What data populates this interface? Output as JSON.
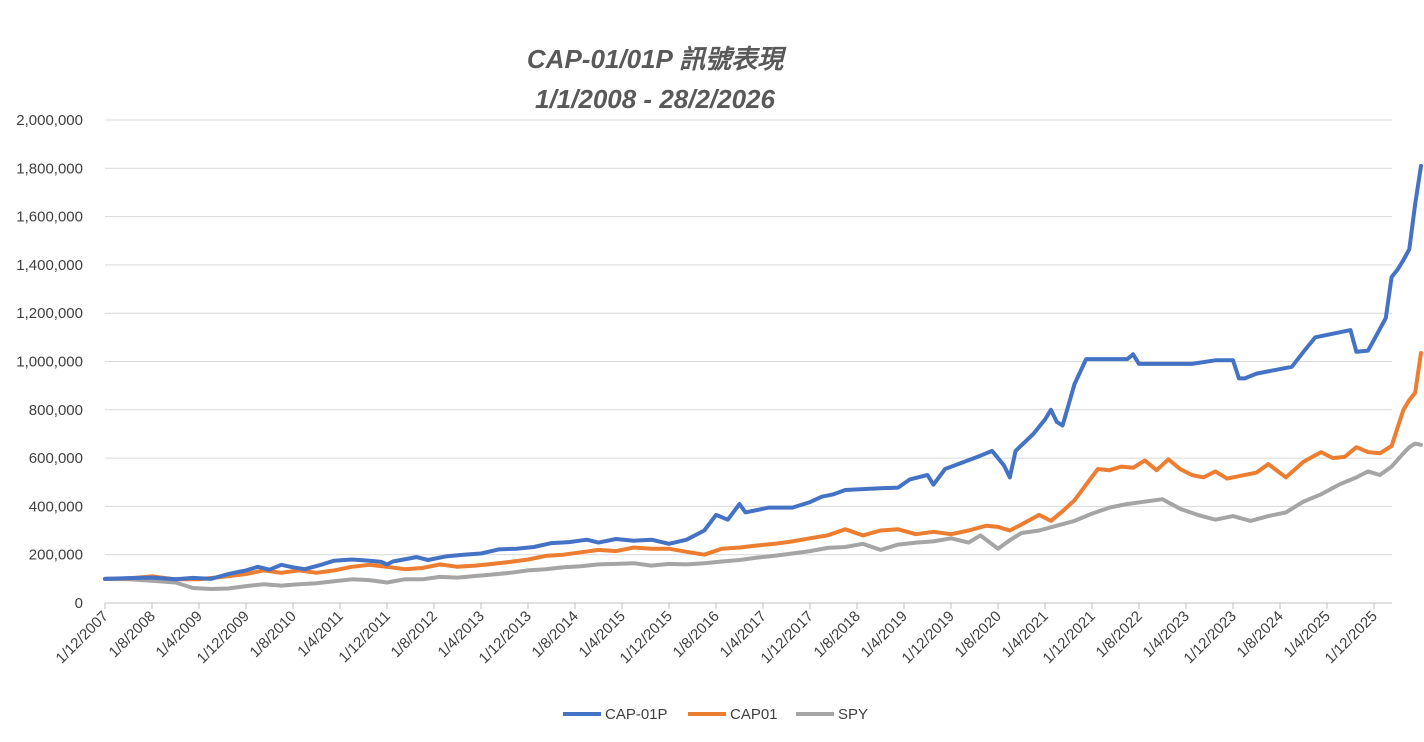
{
  "chart_data": {
    "type": "line",
    "title": "CAP-01/01P 訊號表現",
    "subtitle": "1/1/2008 - 28/2/2026",
    "xlabel": "",
    "ylabel": "",
    "ylim": [
      0,
      2000000
    ],
    "yticks": [
      0,
      200000,
      400000,
      600000,
      800000,
      1000000,
      1200000,
      1400000,
      1600000,
      1800000,
      2000000
    ],
    "ytick_labels": [
      "0",
      "200,000",
      "400,000",
      "600,000",
      "800,000",
      "1,000,000",
      "1,200,000",
      "1,400,000",
      "1,600,000",
      "1,800,000",
      "2,000,000"
    ],
    "x_range": [
      "2007-12-01",
      "2026-03-01"
    ],
    "xtick_labels": [
      "1/12/2007",
      "1/8/2008",
      "1/4/2009",
      "1/12/2009",
      "1/8/2010",
      "1/4/2011",
      "1/12/2011",
      "1/8/2012",
      "1/4/2013",
      "1/12/2013",
      "1/8/2014",
      "1/4/2015",
      "1/12/2015",
      "1/8/2016",
      "1/4/2017",
      "1/12/2017",
      "1/8/2018",
      "1/4/2019",
      "1/12/2019",
      "1/8/2020",
      "1/4/2021",
      "1/12/2021",
      "1/8/2022",
      "1/4/2023",
      "1/12/2023",
      "1/8/2024",
      "1/4/2025",
      "1/12/2025"
    ],
    "grid": true,
    "legend_position": "bottom",
    "series": [
      {
        "name": "CAP-01P",
        "color": "#4472c4",
        "points": [
          [
            "2007-12-01",
            100000
          ],
          [
            "2008-04-01",
            103000
          ],
          [
            "2008-08-01",
            105000
          ],
          [
            "2008-12-01",
            98000
          ],
          [
            "2009-03-01",
            104000
          ],
          [
            "2009-06-01",
            100000
          ],
          [
            "2009-09-01",
            120000
          ],
          [
            "2009-12-01",
            135000
          ],
          [
            "2010-02-01",
            150000
          ],
          [
            "2010-04-01",
            138000
          ],
          [
            "2010-06-01",
            158000
          ],
          [
            "2010-08-01",
            148000
          ],
          [
            "2010-10-01",
            140000
          ],
          [
            "2011-01-01",
            160000
          ],
          [
            "2011-03-01",
            175000
          ],
          [
            "2011-06-01",
            180000
          ],
          [
            "2011-09-01",
            175000
          ],
          [
            "2011-11-01",
            170000
          ],
          [
            "2011-12-01",
            160000
          ],
          [
            "2012-01-01",
            172000
          ],
          [
            "2012-05-01",
            190000
          ],
          [
            "2012-07-01",
            178000
          ],
          [
            "2012-10-01",
            193000
          ],
          [
            "2013-01-01",
            200000
          ],
          [
            "2013-04-01",
            205000
          ],
          [
            "2013-07-01",
            222000
          ],
          [
            "2013-10-01",
            225000
          ],
          [
            "2014-01-01",
            232000
          ],
          [
            "2014-04-01",
            248000
          ],
          [
            "2014-07-01",
            252000
          ],
          [
            "2014-10-01",
            262000
          ],
          [
            "2014-12-01",
            250000
          ],
          [
            "2015-03-01",
            265000
          ],
          [
            "2015-06-01",
            258000
          ],
          [
            "2015-09-01",
            262000
          ],
          [
            "2015-12-01",
            245000
          ],
          [
            "2016-03-01",
            262000
          ],
          [
            "2016-06-01",
            300000
          ],
          [
            "2016-08-01",
            365000
          ],
          [
            "2016-10-01",
            345000
          ],
          [
            "2016-12-01",
            410000
          ],
          [
            "2017-01-01",
            375000
          ],
          [
            "2017-03-01",
            385000
          ],
          [
            "2017-05-01",
            395000
          ],
          [
            "2017-09-01",
            395000
          ],
          [
            "2017-12-01",
            418000
          ],
          [
            "2018-02-01",
            440000
          ],
          [
            "2018-04-01",
            450000
          ],
          [
            "2018-06-01",
            468000
          ],
          [
            "2018-12-01",
            475000
          ],
          [
            "2019-03-01",
            478000
          ],
          [
            "2019-05-01",
            512000
          ],
          [
            "2019-08-01",
            530000
          ],
          [
            "2019-09-01",
            490000
          ],
          [
            "2019-11-01",
            555000
          ],
          [
            "2020-02-01",
            582000
          ],
          [
            "2020-05-01",
            610000
          ],
          [
            "2020-07-01",
            630000
          ],
          [
            "2020-09-01",
            570000
          ],
          [
            "2020-10-01",
            520000
          ],
          [
            "2020-11-01",
            630000
          ],
          [
            "2021-02-01",
            700000
          ],
          [
            "2021-04-01",
            760000
          ],
          [
            "2021-05-01",
            800000
          ],
          [
            "2021-06-01",
            750000
          ],
          [
            "2021-07-01",
            735000
          ],
          [
            "2021-09-01",
            905000
          ],
          [
            "2021-11-01",
            1010000
          ],
          [
            "2022-01-01",
            1010000
          ],
          [
            "2022-06-01",
            1010000
          ],
          [
            "2022-07-01",
            1030000
          ],
          [
            "2022-08-01",
            990000
          ],
          [
            "2022-12-01",
            990000
          ],
          [
            "2023-05-01",
            990000
          ],
          [
            "2023-09-01",
            1005000
          ],
          [
            "2023-12-01",
            1005000
          ],
          [
            "2024-01-01",
            930000
          ],
          [
            "2024-02-01",
            930000
          ],
          [
            "2024-04-01",
            950000
          ],
          [
            "2024-10-01",
            978000
          ],
          [
            "2024-12-01",
            1040000
          ],
          [
            "2025-02-01",
            1100000
          ],
          [
            "2025-08-01",
            1130000
          ],
          [
            "2025-09-01",
            1040000
          ],
          [
            "2025-11-01",
            1045000
          ],
          [
            "2025-12-01",
            1090000
          ],
          [
            "2026-01-01",
            1135000
          ],
          [
            "2026-02-01",
            1180000
          ],
          [
            "2026-03-01",
            1350000
          ],
          [
            "2026-04-01",
            1380000
          ],
          [
            "2026-05-01",
            1420000
          ],
          [
            "2026-06-01",
            1465000
          ],
          [
            "2026-07-01",
            1650000
          ],
          [
            "2026-08-01",
            1810000
          ]
        ]
      },
      {
        "name": "CAP01",
        "color": "#ed7d31",
        "points": [
          [
            "2007-12-01",
            100000
          ],
          [
            "2008-04-01",
            102000
          ],
          [
            "2008-08-01",
            110000
          ],
          [
            "2008-12-01",
            98000
          ],
          [
            "2009-04-01",
            98000
          ],
          [
            "2009-08-01",
            108000
          ],
          [
            "2009-12-01",
            120000
          ],
          [
            "2010-03-01",
            135000
          ],
          [
            "2010-06-01",
            125000
          ],
          [
            "2010-09-01",
            135000
          ],
          [
            "2010-12-01",
            125000
          ],
          [
            "2011-03-01",
            135000
          ],
          [
            "2011-06-01",
            150000
          ],
          [
            "2011-09-01",
            158000
          ],
          [
            "2011-12-01",
            150000
          ],
          [
            "2012-03-01",
            140000
          ],
          [
            "2012-06-01",
            145000
          ],
          [
            "2012-09-01",
            160000
          ],
          [
            "2012-12-01",
            150000
          ],
          [
            "2013-03-01",
            155000
          ],
          [
            "2013-06-01",
            162000
          ],
          [
            "2013-09-01",
            170000
          ],
          [
            "2013-12-01",
            180000
          ],
          [
            "2014-03-01",
            195000
          ],
          [
            "2014-06-01",
            200000
          ],
          [
            "2014-09-01",
            210000
          ],
          [
            "2014-12-01",
            220000
          ],
          [
            "2015-03-01",
            215000
          ],
          [
            "2015-06-01",
            230000
          ],
          [
            "2015-09-01",
            225000
          ],
          [
            "2015-12-01",
            225000
          ],
          [
            "2016-03-01",
            212000
          ],
          [
            "2016-06-01",
            200000
          ],
          [
            "2016-09-01",
            225000
          ],
          [
            "2016-12-01",
            230000
          ],
          [
            "2017-03-01",
            238000
          ],
          [
            "2017-06-01",
            245000
          ],
          [
            "2017-09-01",
            255000
          ],
          [
            "2017-12-01",
            268000
          ],
          [
            "2018-03-01",
            280000
          ],
          [
            "2018-06-01",
            305000
          ],
          [
            "2018-09-01",
            280000
          ],
          [
            "2018-12-01",
            300000
          ],
          [
            "2019-03-01",
            305000
          ],
          [
            "2019-06-01",
            285000
          ],
          [
            "2019-09-01",
            295000
          ],
          [
            "2019-12-01",
            285000
          ],
          [
            "2020-03-01",
            300000
          ],
          [
            "2020-06-01",
            320000
          ],
          [
            "2020-08-01",
            315000
          ],
          [
            "2020-10-01",
            300000
          ],
          [
            "2020-12-01",
            325000
          ],
          [
            "2021-03-01",
            365000
          ],
          [
            "2021-05-01",
            340000
          ],
          [
            "2021-07-01",
            380000
          ],
          [
            "2021-09-01",
            425000
          ],
          [
            "2021-11-01",
            490000
          ],
          [
            "2022-01-01",
            555000
          ],
          [
            "2022-03-01",
            550000
          ],
          [
            "2022-05-01",
            565000
          ],
          [
            "2022-07-01",
            560000
          ],
          [
            "2022-09-01",
            590000
          ],
          [
            "2022-11-01",
            550000
          ],
          [
            "2023-01-01",
            595000
          ],
          [
            "2023-03-01",
            555000
          ],
          [
            "2023-05-01",
            530000
          ],
          [
            "2023-07-01",
            520000
          ],
          [
            "2023-09-01",
            545000
          ],
          [
            "2023-11-01",
            515000
          ],
          [
            "2024-01-01",
            525000
          ],
          [
            "2024-04-01",
            540000
          ],
          [
            "2024-06-01",
            575000
          ],
          [
            "2024-09-01",
            520000
          ],
          [
            "2024-12-01",
            585000
          ],
          [
            "2025-03-01",
            625000
          ],
          [
            "2025-05-01",
            600000
          ],
          [
            "2025-07-01",
            605000
          ],
          [
            "2025-09-01",
            645000
          ],
          [
            "2025-11-01",
            625000
          ],
          [
            "2026-01-01",
            620000
          ],
          [
            "2026-03-01",
            650000
          ],
          [
            "2026-05-01",
            800000
          ],
          [
            "2026-06-01",
            840000
          ],
          [
            "2026-07-01",
            870000
          ],
          [
            "2026-08-01",
            1035000
          ]
        ]
      },
      {
        "name": "SPY",
        "color": "#a5a5a5",
        "points": [
          [
            "2007-12-01",
            100000
          ],
          [
            "2008-04-01",
            98000
          ],
          [
            "2008-08-01",
            92000
          ],
          [
            "2008-12-01",
            85000
          ],
          [
            "2009-03-01",
            62000
          ],
          [
            "2009-06-01",
            58000
          ],
          [
            "2009-09-01",
            60000
          ],
          [
            "2009-12-01",
            70000
          ],
          [
            "2010-03-01",
            78000
          ],
          [
            "2010-06-01",
            72000
          ],
          [
            "2010-09-01",
            78000
          ],
          [
            "2010-12-01",
            82000
          ],
          [
            "2011-03-01",
            90000
          ],
          [
            "2011-06-01",
            98000
          ],
          [
            "2011-09-01",
            95000
          ],
          [
            "2011-12-01",
            85000
          ],
          [
            "2012-03-01",
            98000
          ],
          [
            "2012-06-01",
            98000
          ],
          [
            "2012-09-01",
            108000
          ],
          [
            "2012-12-01",
            105000
          ],
          [
            "2013-03-01",
            112000
          ],
          [
            "2013-06-01",
            118000
          ],
          [
            "2013-09-01",
            125000
          ],
          [
            "2013-12-01",
            135000
          ],
          [
            "2014-03-01",
            140000
          ],
          [
            "2014-06-01",
            148000
          ],
          [
            "2014-09-01",
            152000
          ],
          [
            "2014-12-01",
            160000
          ],
          [
            "2015-03-01",
            162000
          ],
          [
            "2015-06-01",
            165000
          ],
          [
            "2015-09-01",
            155000
          ],
          [
            "2015-12-01",
            162000
          ],
          [
            "2016-03-01",
            160000
          ],
          [
            "2016-06-01",
            165000
          ],
          [
            "2016-09-01",
            172000
          ],
          [
            "2016-12-01",
            178000
          ],
          [
            "2017-03-01",
            188000
          ],
          [
            "2017-06-01",
            196000
          ],
          [
            "2017-09-01",
            205000
          ],
          [
            "2017-12-01",
            215000
          ],
          [
            "2018-03-01",
            228000
          ],
          [
            "2018-06-01",
            232000
          ],
          [
            "2018-09-01",
            245000
          ],
          [
            "2018-12-01",
            220000
          ],
          [
            "2019-03-01",
            242000
          ],
          [
            "2019-06-01",
            250000
          ],
          [
            "2019-09-01",
            255000
          ],
          [
            "2019-12-01",
            268000
          ],
          [
            "2020-03-01",
            250000
          ],
          [
            "2020-05-01",
            280000
          ],
          [
            "2020-08-01",
            225000
          ],
          [
            "2020-10-01",
            260000
          ],
          [
            "2020-12-01",
            290000
          ],
          [
            "2021-03-01",
            300000
          ],
          [
            "2021-06-01",
            320000
          ],
          [
            "2021-09-01",
            340000
          ],
          [
            "2021-12-01",
            370000
          ],
          [
            "2022-03-01",
            395000
          ],
          [
            "2022-06-01",
            410000
          ],
          [
            "2022-09-01",
            420000
          ],
          [
            "2022-12-01",
            430000
          ],
          [
            "2023-03-01",
            390000
          ],
          [
            "2023-06-01",
            365000
          ],
          [
            "2023-09-01",
            345000
          ],
          [
            "2023-12-01",
            360000
          ],
          [
            "2024-03-01",
            340000
          ],
          [
            "2024-06-01",
            360000
          ],
          [
            "2024-09-01",
            375000
          ],
          [
            "2024-12-01",
            420000
          ],
          [
            "2025-03-01",
            450000
          ],
          [
            "2025-06-01",
            490000
          ],
          [
            "2025-09-01",
            520000
          ],
          [
            "2025-11-01",
            545000
          ],
          [
            "2026-01-01",
            530000
          ],
          [
            "2026-03-01",
            565000
          ],
          [
            "2026-05-01",
            620000
          ],
          [
            "2026-06-01",
            645000
          ],
          [
            "2026-07-01",
            660000
          ],
          [
            "2026-08-01",
            655000
          ]
        ]
      }
    ]
  }
}
